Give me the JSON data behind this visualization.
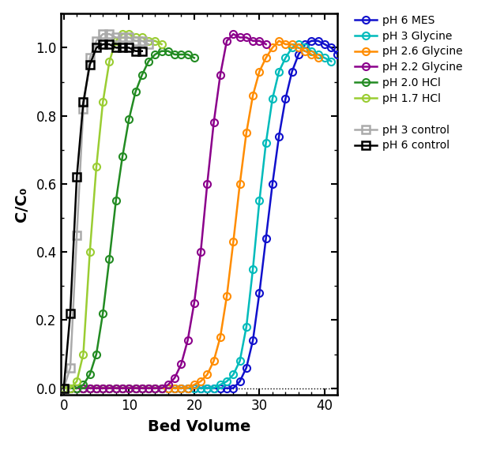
{
  "title": "",
  "xlabel": "Bed Volume",
  "ylabel": "C/C₀",
  "xlim": [
    -0.5,
    42
  ],
  "ylim": [
    -0.02,
    1.1
  ],
  "yticks": [
    0.0,
    0.2,
    0.4,
    0.6,
    0.8,
    1.0
  ],
  "xticks": [
    0,
    10,
    20,
    30,
    40
  ],
  "background": "#ffffff",
  "series": {
    "pH6_MES": {
      "label": "pH 6 MES",
      "color": "#1010CC",
      "x": [
        0,
        1,
        2,
        3,
        4,
        5,
        6,
        7,
        8,
        9,
        10,
        11,
        12,
        13,
        14,
        15,
        16,
        17,
        18,
        19,
        20,
        21,
        22,
        23,
        24,
        25,
        26,
        27,
        28,
        29,
        30,
        31,
        32,
        33,
        34,
        35,
        36,
        37,
        38,
        39,
        40,
        41,
        42
      ],
      "y": [
        0,
        0,
        0,
        0,
        0,
        0,
        0,
        0,
        0,
        0,
        0,
        0,
        0,
        0,
        0,
        0,
        0,
        0,
        0,
        0,
        0,
        0,
        0,
        0,
        0,
        0,
        0,
        0.02,
        0.06,
        0.14,
        0.28,
        0.44,
        0.6,
        0.74,
        0.85,
        0.93,
        0.98,
        1.01,
        1.02,
        1.02,
        1.01,
        1.0,
        0.98
      ]
    },
    "pH3_Glycine": {
      "label": "pH 3 Glycine",
      "color": "#00BBBB",
      "x": [
        0,
        1,
        2,
        3,
        4,
        5,
        6,
        7,
        8,
        9,
        10,
        11,
        12,
        13,
        14,
        15,
        16,
        17,
        18,
        19,
        20,
        21,
        22,
        23,
        24,
        25,
        26,
        27,
        28,
        29,
        30,
        31,
        32,
        33,
        34,
        35,
        36,
        37,
        38,
        39,
        40,
        41
      ],
      "y": [
        0,
        0,
        0,
        0,
        0,
        0,
        0,
        0,
        0,
        0,
        0,
        0,
        0,
        0,
        0,
        0,
        0,
        0,
        0,
        0,
        0,
        0,
        0,
        0,
        0.01,
        0.02,
        0.04,
        0.08,
        0.18,
        0.35,
        0.55,
        0.72,
        0.85,
        0.93,
        0.97,
        1.0,
        1.01,
        1.0,
        0.99,
        0.98,
        0.97,
        0.96
      ]
    },
    "pH2p6_Glycine": {
      "label": "pH 2.6 Glycine",
      "color": "#FF8C00",
      "x": [
        0,
        1,
        2,
        3,
        4,
        5,
        6,
        7,
        8,
        9,
        10,
        11,
        12,
        13,
        14,
        15,
        16,
        17,
        18,
        19,
        20,
        21,
        22,
        23,
        24,
        25,
        26,
        27,
        28,
        29,
        30,
        31,
        32,
        33,
        34,
        35,
        36,
        37,
        38,
        39
      ],
      "y": [
        0,
        0,
        0,
        0,
        0,
        0,
        0,
        0,
        0,
        0,
        0,
        0,
        0,
        0,
        0,
        0,
        0,
        0,
        0,
        0,
        0.01,
        0.02,
        0.04,
        0.08,
        0.15,
        0.27,
        0.43,
        0.6,
        0.75,
        0.86,
        0.93,
        0.97,
        1.0,
        1.02,
        1.01,
        1.01,
        1.0,
        0.99,
        0.98,
        0.97
      ]
    },
    "pH2p2_Glycine": {
      "label": "pH 2.2 Glycine",
      "color": "#8B008B",
      "x": [
        0,
        1,
        2,
        3,
        4,
        5,
        6,
        7,
        8,
        9,
        10,
        11,
        12,
        13,
        14,
        15,
        16,
        17,
        18,
        19,
        20,
        21,
        22,
        23,
        24,
        25,
        26,
        27,
        28,
        29,
        30,
        31
      ],
      "y": [
        0,
        0,
        0,
        0,
        0,
        0,
        0,
        0,
        0,
        0,
        0,
        0,
        0,
        0,
        0,
        0,
        0.01,
        0.03,
        0.07,
        0.14,
        0.25,
        0.4,
        0.6,
        0.78,
        0.92,
        1.02,
        1.04,
        1.03,
        1.03,
        1.02,
        1.02,
        1.01
      ]
    },
    "pH2p0_HCl": {
      "label": "pH 2.0 HCl",
      "color": "#228B22",
      "x": [
        0,
        1,
        2,
        3,
        4,
        5,
        6,
        7,
        8,
        9,
        10,
        11,
        12,
        13,
        14,
        15,
        16,
        17,
        18,
        19,
        20
      ],
      "y": [
        0,
        0,
        0,
        0.01,
        0.04,
        0.1,
        0.22,
        0.38,
        0.55,
        0.68,
        0.79,
        0.87,
        0.92,
        0.96,
        0.98,
        0.99,
        0.99,
        0.98,
        0.98,
        0.98,
        0.97
      ]
    },
    "pH1p7_HCl": {
      "label": "pH 1.7 HCl",
      "color": "#9ACD32",
      "x": [
        0,
        1,
        2,
        3,
        4,
        5,
        6,
        7,
        8,
        9,
        10,
        11,
        12,
        13,
        14,
        15
      ],
      "y": [
        0,
        0,
        0.02,
        0.1,
        0.4,
        0.65,
        0.84,
        0.96,
        1.02,
        1.04,
        1.04,
        1.03,
        1.03,
        1.02,
        1.02,
        1.01
      ]
    },
    "pH3_control": {
      "label": "pH 3 control",
      "color": "#AAAAAA",
      "x": [
        0,
        1,
        2,
        3,
        4,
        5,
        6,
        7,
        8,
        9,
        10,
        11,
        12,
        13
      ],
      "y": [
        0,
        0.06,
        0.45,
        0.82,
        0.97,
        1.02,
        1.04,
        1.04,
        1.03,
        1.03,
        1.03,
        1.02,
        1.02,
        1.01
      ]
    },
    "pH6_control": {
      "label": "pH 6 control",
      "color": "#000000",
      "x": [
        0,
        1,
        2,
        3,
        4,
        5,
        6,
        7,
        8,
        9,
        10,
        11,
        12
      ],
      "y": [
        0,
        0.22,
        0.62,
        0.84,
        0.95,
        1.0,
        1.01,
        1.01,
        1.0,
        1.0,
        1.0,
        0.99,
        0.99
      ]
    }
  }
}
